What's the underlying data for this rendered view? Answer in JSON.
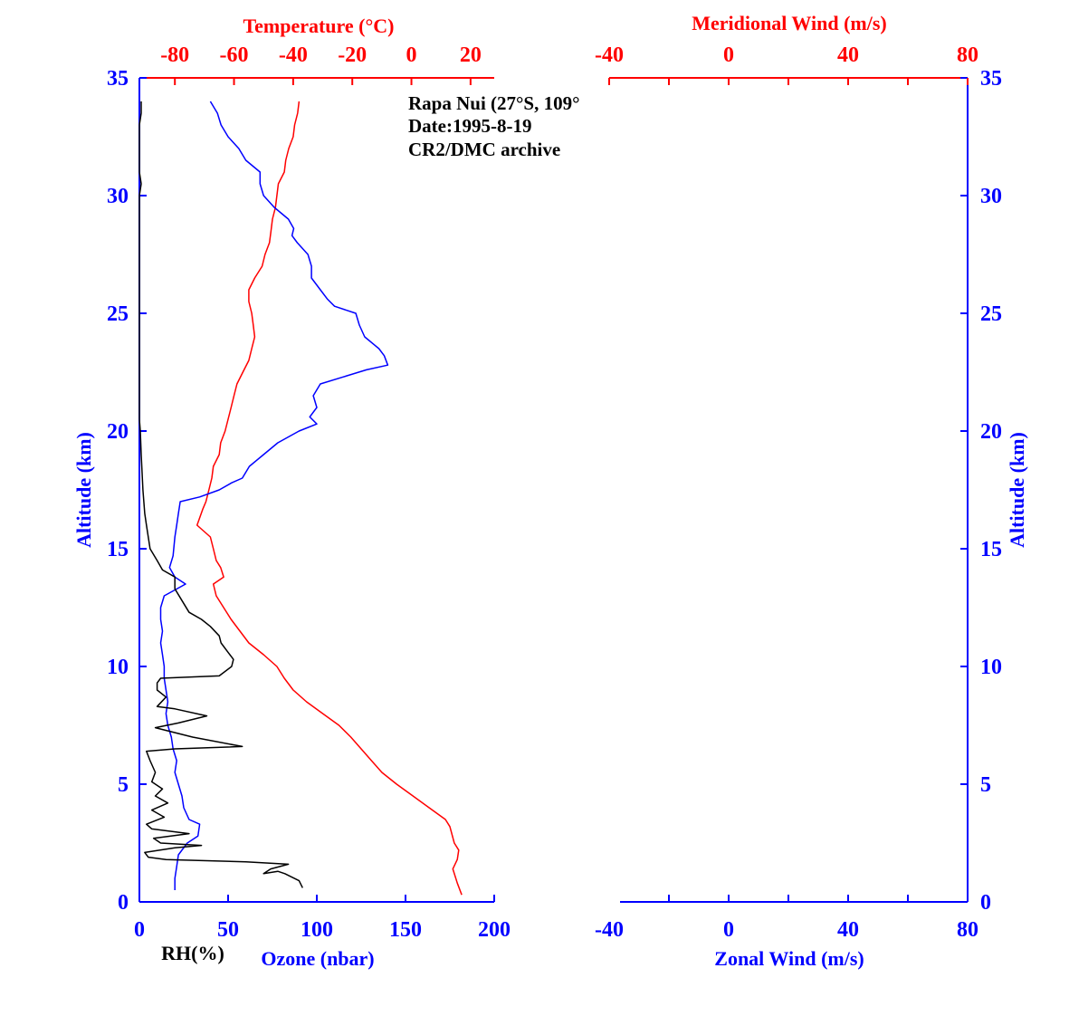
{
  "colors": {
    "blue": "#0000ff",
    "red": "#ff0000",
    "black": "#000000"
  },
  "annotation": {
    "station": "Rapa Nui (27°S, 109°",
    "date": "Date:1995-8-19",
    "archive": "CR2/DMC archive"
  },
  "chart_data": [
    {
      "type": "line",
      "panel": "left",
      "y_axis": {
        "label": "Altitude (km)",
        "range": [
          0,
          35
        ],
        "ticks": [
          "0",
          "5",
          "10",
          "15",
          "20",
          "25",
          "30",
          "35"
        ]
      },
      "x_axis_bottom": {
        "label": "Ozone (nbar)",
        "range": [
          0,
          200
        ],
        "ticks": [
          "0",
          "50",
          "100",
          "150",
          "200"
        ]
      },
      "x_axis_bottom_secondary": {
        "label": "RH(%)"
      },
      "x_axis_top": {
        "label": "Temperature (°C)",
        "range": [
          -92,
          28
        ],
        "ticks": [
          "-80",
          "-60",
          "-40",
          "-20",
          "0",
          "20"
        ]
      },
      "grid": false,
      "series": [
        {
          "name": "Temperature (°C)",
          "axis": "top",
          "color": "#ff0000",
          "points": [
            [
              17.0,
              0.3
            ],
            [
              15.5,
              0.8
            ],
            [
              14.0,
              1.4
            ],
            [
              15.5,
              1.8
            ],
            [
              16.0,
              2.2
            ],
            [
              14.5,
              2.5
            ],
            [
              13.0,
              3.2
            ],
            [
              11.5,
              3.5
            ],
            [
              6.0,
              4.0
            ],
            [
              0.5,
              4.5
            ],
            [
              -5.0,
              5.0
            ],
            [
              -10.0,
              5.5
            ],
            [
              -13.5,
              6.0
            ],
            [
              -17.0,
              6.5
            ],
            [
              -20.5,
              7.0
            ],
            [
              -24.5,
              7.5
            ],
            [
              -30.0,
              8.0
            ],
            [
              -35.5,
              8.5
            ],
            [
              -40.0,
              9.0
            ],
            [
              -43.0,
              9.5
            ],
            [
              -45.5,
              10.0
            ],
            [
              -50.0,
              10.5
            ],
            [
              -55.0,
              11.0
            ],
            [
              -58.0,
              11.5
            ],
            [
              -61.0,
              12.0
            ],
            [
              -63.5,
              12.5
            ],
            [
              -66.0,
              13.0
            ],
            [
              -67.0,
              13.5
            ],
            [
              -63.5,
              13.8
            ],
            [
              -64.5,
              14.2
            ],
            [
              -66.0,
              14.5
            ],
            [
              -67.0,
              15.0
            ],
            [
              -68.0,
              15.5
            ],
            [
              -72.5,
              16.0
            ],
            [
              -70.5,
              16.7
            ],
            [
              -69.5,
              17.0
            ],
            [
              -68.5,
              17.5
            ],
            [
              -67.5,
              18.0
            ],
            [
              -67.0,
              18.5
            ],
            [
              -65.0,
              19.0
            ],
            [
              -64.5,
              19.5
            ],
            [
              -63.0,
              20.0
            ],
            [
              -62.0,
              20.5
            ],
            [
              -61.0,
              21.0
            ],
            [
              -60.0,
              21.5
            ],
            [
              -59.0,
              22.0
            ],
            [
              -57.0,
              22.5
            ],
            [
              -55.0,
              23.0
            ],
            [
              -54.0,
              23.5
            ],
            [
              -53.0,
              24.0
            ],
            [
              -53.5,
              24.5
            ],
            [
              -54.0,
              25.0
            ],
            [
              -55.0,
              25.5
            ],
            [
              -55.0,
              26.0
            ],
            [
              -53.0,
              26.5
            ],
            [
              -50.5,
              27.0
            ],
            [
              -49.5,
              27.5
            ],
            [
              -48.0,
              28.0
            ],
            [
              -47.5,
              28.5
            ],
            [
              -47.0,
              29.0
            ],
            [
              -46.0,
              29.5
            ],
            [
              -45.5,
              30.0
            ],
            [
              -45.0,
              30.5
            ],
            [
              -43.0,
              31.0
            ],
            [
              -42.5,
              31.5
            ],
            [
              -41.5,
              32.0
            ],
            [
              -40.0,
              32.5
            ],
            [
              -39.5,
              33.0
            ],
            [
              -38.5,
              33.5
            ],
            [
              -38.0,
              34.0
            ]
          ]
        },
        {
          "name": "Ozone (nbar)",
          "axis": "bottom",
          "color": "#0000ff",
          "points": [
            [
              20,
              0.5
            ],
            [
              20,
              1.0
            ],
            [
              21,
              1.5
            ],
            [
              22,
              2.0
            ],
            [
              27,
              2.5
            ],
            [
              33,
              2.8
            ],
            [
              34,
              3.3
            ],
            [
              28,
              3.5
            ],
            [
              25,
              4.0
            ],
            [
              24,
              4.5
            ],
            [
              22,
              5.0
            ],
            [
              20,
              5.5
            ],
            [
              21,
              6.0
            ],
            [
              19,
              6.5
            ],
            [
              18,
              7.0
            ],
            [
              16,
              7.5
            ],
            [
              15,
              8.0
            ],
            [
              16,
              8.5
            ],
            [
              15,
              9.0
            ],
            [
              14,
              9.5
            ],
            [
              14,
              10.0
            ],
            [
              13,
              10.5
            ],
            [
              12,
              11.0
            ],
            [
              13,
              11.5
            ],
            [
              12,
              12.0
            ],
            [
              12,
              12.5
            ],
            [
              14,
              13.0
            ],
            [
              26,
              13.5
            ],
            [
              20,
              13.8
            ],
            [
              17,
              14.2
            ],
            [
              19,
              14.7
            ],
            [
              20,
              15.5
            ],
            [
              21,
              16.0
            ],
            [
              22,
              16.5
            ],
            [
              23,
              17.0
            ],
            [
              34,
              17.2
            ],
            [
              45,
              17.5
            ],
            [
              52,
              17.8
            ],
            [
              58,
              18.0
            ],
            [
              62,
              18.5
            ],
            [
              70,
              19.0
            ],
            [
              78,
              19.5
            ],
            [
              90,
              20.0
            ],
            [
              100,
              20.3
            ],
            [
              96,
              20.6
            ],
            [
              100,
              21.0
            ],
            [
              98,
              21.5
            ],
            [
              102,
              22.0
            ],
            [
              115,
              22.3
            ],
            [
              128,
              22.6
            ],
            [
              140,
              22.8
            ],
            [
              138,
              23.2
            ],
            [
              135,
              23.5
            ],
            [
              127,
              24.0
            ],
            [
              124,
              24.5
            ],
            [
              122,
              25.0
            ],
            [
              110,
              25.3
            ],
            [
              106,
              25.6
            ],
            [
              102,
              26.0
            ],
            [
              97,
              26.5
            ],
            [
              97,
              27.0
            ],
            [
              95,
              27.5
            ],
            [
              89,
              28.0
            ],
            [
              86,
              28.3
            ],
            [
              87,
              28.6
            ],
            [
              84,
              29.0
            ],
            [
              76,
              29.5
            ],
            [
              70,
              30.0
            ],
            [
              68,
              30.5
            ],
            [
              68,
              31.0
            ],
            [
              60,
              31.5
            ],
            [
              56,
              32.0
            ],
            [
              50,
              32.5
            ],
            [
              46,
              33.0
            ],
            [
              44,
              33.5
            ],
            [
              40,
              34.0
            ]
          ]
        },
        {
          "name": "RH(%)",
          "axis": "bottom",
          "color": "#000000",
          "points": [
            [
              92,
              0.6
            ],
            [
              90,
              0.9
            ],
            [
              82,
              1.2
            ],
            [
              78,
              1.3
            ],
            [
              70,
              1.2
            ],
            [
              74,
              1.4
            ],
            [
              84,
              1.6
            ],
            [
              60,
              1.7
            ],
            [
              15,
              1.8
            ],
            [
              5,
              1.9
            ],
            [
              3,
              2.1
            ],
            [
              20,
              2.3
            ],
            [
              35,
              2.4
            ],
            [
              12,
              2.5
            ],
            [
              8,
              2.7
            ],
            [
              28,
              2.9
            ],
            [
              7,
              3.1
            ],
            [
              4,
              3.3
            ],
            [
              14,
              3.6
            ],
            [
              7,
              3.9
            ],
            [
              16,
              4.2
            ],
            [
              9,
              4.5
            ],
            [
              13,
              4.8
            ],
            [
              7,
              5.1
            ],
            [
              9,
              5.5
            ],
            [
              6,
              6.0
            ],
            [
              4,
              6.4
            ],
            [
              20,
              6.5
            ],
            [
              58,
              6.6
            ],
            [
              30,
              7.0
            ],
            [
              9,
              7.4
            ],
            [
              22,
              7.6
            ],
            [
              38,
              7.9
            ],
            [
              20,
              8.2
            ],
            [
              10,
              8.3
            ],
            [
              15,
              8.7
            ],
            [
              10,
              9.0
            ],
            [
              10,
              9.3
            ],
            [
              12,
              9.5
            ],
            [
              45,
              9.6
            ],
            [
              52,
              10.0
            ],
            [
              53,
              10.3
            ],
            [
              50,
              10.6
            ],
            [
              46,
              11.0
            ],
            [
              45,
              11.3
            ],
            [
              40,
              11.7
            ],
            [
              35,
              12.0
            ],
            [
              28,
              12.3
            ],
            [
              24,
              12.8
            ],
            [
              20,
              13.3
            ],
            [
              20,
              13.8
            ],
            [
              13,
              14.1
            ],
            [
              10,
              14.5
            ],
            [
              6,
              15.0
            ],
            [
              5,
              15.5
            ],
            [
              4,
              16.0
            ],
            [
              3,
              16.5
            ],
            [
              2,
              17.5
            ],
            [
              1,
              19.0
            ],
            [
              0.5,
              20.0
            ],
            [
              0,
              20.5
            ],
            [
              0,
              21.0
            ],
            [
              0,
              30.0
            ],
            [
              1,
              30.5
            ],
            [
              0,
              31.0
            ],
            [
              0,
              33.0
            ],
            [
              1,
              33.5
            ],
            [
              1,
              34.0
            ]
          ]
        }
      ]
    },
    {
      "type": "line",
      "panel": "right",
      "y_axis": {
        "label": "Altitude (km)",
        "range": [
          0,
          35
        ],
        "ticks": [
          "0",
          "5",
          "10",
          "15",
          "20",
          "25",
          "30",
          "35"
        ]
      },
      "x_axis_bottom": {
        "label": "Zonal Wind (m/s)",
        "range": [
          -40,
          80
        ],
        "ticks": [
          "-40",
          "0",
          "40",
          "80"
        ]
      },
      "x_axis_top": {
        "label": "Meridional Wind (m/s)",
        "range": [
          -40,
          80
        ],
        "ticks": [
          "-40",
          "0",
          "40",
          "80"
        ]
      },
      "grid": false,
      "series": []
    }
  ]
}
